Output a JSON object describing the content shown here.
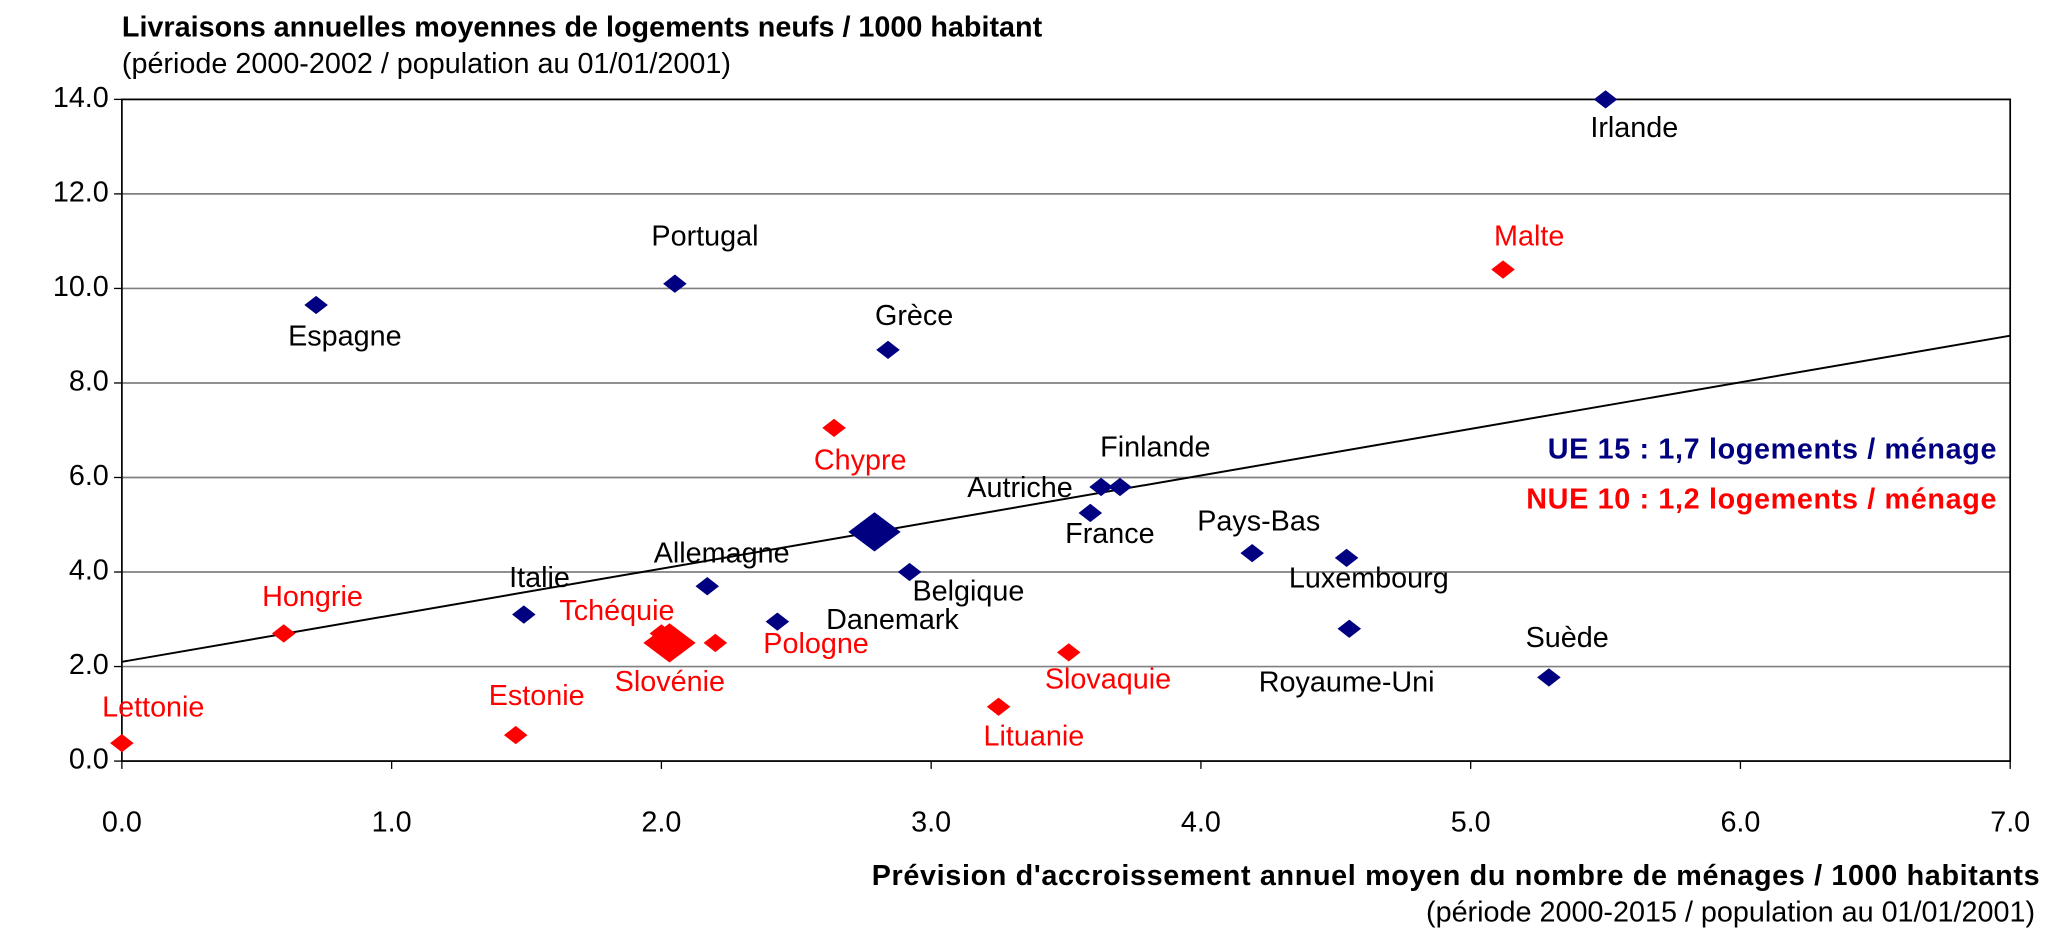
{
  "chart_data": {
    "type": "scatter",
    "title": "Livraisons annuelles moyennes de logements neufs / 1000 habitant",
    "subtitle": "(période 2000-2002 / population au 01/01/2001)",
    "x_label": "Prévision d'accroissement annuel moyen du nombre de ménages / 1000 habitants",
    "x_sublabel": "(période 2000-2015 / population au 01/01/2001)",
    "xlim": [
      0,
      7
    ],
    "ylim": [
      0,
      14
    ],
    "xticks": [
      {
        "value": 0,
        "label": "0.0"
      },
      {
        "value": 1,
        "label": "1.0"
      },
      {
        "value": 2,
        "label": "2.0"
      },
      {
        "value": 3,
        "label": "3.0"
      },
      {
        "value": 4,
        "label": "4.0"
      },
      {
        "value": 5,
        "label": "5.0"
      },
      {
        "value": 6,
        "label": "6.0"
      },
      {
        "value": 7,
        "label": "7.0"
      }
    ],
    "yticks": [
      {
        "value": 0,
        "label": "0.0"
      },
      {
        "value": 2,
        "label": "2.0"
      },
      {
        "value": 4,
        "label": "4.0"
      },
      {
        "value": 6,
        "label": "6.0"
      },
      {
        "value": 8,
        "label": "8.0"
      },
      {
        "value": 10,
        "label": "10.0"
      },
      {
        "value": 12,
        "label": "12.0"
      },
      {
        "value": 14,
        "label": "14.0"
      }
    ],
    "grid": true,
    "trendline": {
      "x": [
        0,
        7
      ],
      "y": [
        2.1,
        9.0
      ]
    },
    "series": [
      {
        "name": "UE 15 : 1,7 logements / ménage",
        "color": "#000080",
        "labels": [
          "Irlande",
          "Portugal",
          "Espagne",
          "Grèce",
          "Autriche",
          "Finlande",
          "France",
          null,
          "Pays-Bas",
          "Luxembourg",
          "Belgique",
          "Allemagne",
          "Italie",
          "Danemark",
          "Royaume-Uni",
          "Suède"
        ],
        "x": [
          5.5,
          2.05,
          0.72,
          2.84,
          3.63,
          3.7,
          3.59,
          2.79,
          4.19,
          4.54,
          2.92,
          2.17,
          1.49,
          2.43,
          4.55,
          5.29
        ],
        "values": [
          14.0,
          10.1,
          9.65,
          8.7,
          5.8,
          5.8,
          5.25,
          4.85,
          4.4,
          4.3,
          4.0,
          3.7,
          3.1,
          2.95,
          2.8,
          1.77
        ]
      },
      {
        "name": "NUE 10 : 1,2 logements / ménage",
        "color": "#ff0000",
        "labels": [
          "Malte",
          "Chypre",
          "Hongrie",
          "Tchéquie",
          "Slovénie",
          null,
          "Pologne",
          "Slovaquie",
          "Lituanie",
          "Estonie",
          "Lettonie"
        ],
        "x": [
          5.12,
          2.64,
          0.6,
          2.0,
          2.07,
          2.03,
          2.2,
          3.51,
          3.25,
          1.46,
          0.0
        ],
        "values": [
          10.4,
          7.05,
          2.7,
          2.7,
          2.45,
          2.5,
          2.5,
          2.3,
          1.15,
          0.55,
          0.38
        ]
      }
    ]
  }
}
